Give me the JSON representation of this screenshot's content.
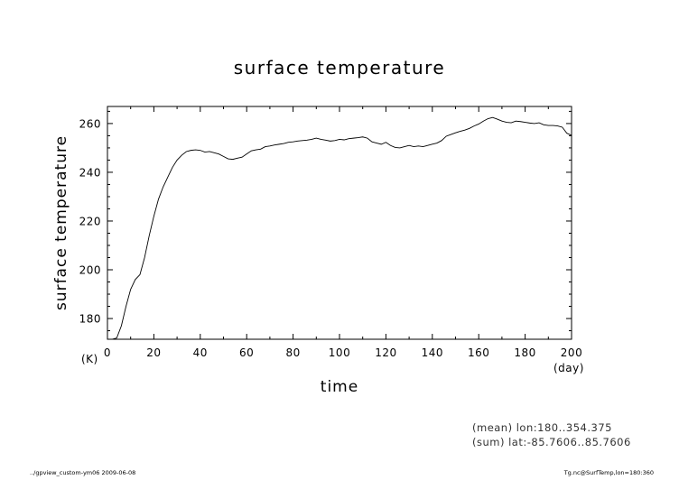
{
  "chart_data": {
    "type": "line",
    "title": "surface temperature",
    "xlabel": "time",
    "ylabel": "surface temperature",
    "x_unit": "(day)",
    "y_unit": "(K)",
    "xlim": [
      0,
      200
    ],
    "ylim": [
      171.5,
      267
    ],
    "xticks": [
      0,
      20,
      40,
      60,
      80,
      100,
      120,
      140,
      160,
      180,
      200
    ],
    "yticks": [
      180,
      200,
      220,
      240,
      260
    ],
    "grid": false,
    "series": [
      {
        "points": [
          [
            0,
            171.5
          ],
          [
            2,
            171.5
          ],
          [
            4,
            172
          ],
          [
            6,
            177
          ],
          [
            8,
            185
          ],
          [
            10,
            192
          ],
          [
            12,
            196
          ],
          [
            14,
            198
          ],
          [
            16,
            205
          ],
          [
            18,
            214
          ],
          [
            20,
            222
          ],
          [
            22,
            229
          ],
          [
            24,
            234
          ],
          [
            26,
            238
          ],
          [
            28,
            242
          ],
          [
            30,
            245
          ],
          [
            32,
            247
          ],
          [
            34,
            248.5
          ],
          [
            36,
            249
          ],
          [
            38,
            249.2
          ],
          [
            40,
            249
          ],
          [
            42,
            248.3
          ],
          [
            44,
            248.5
          ],
          [
            46,
            248
          ],
          [
            48,
            247.5
          ],
          [
            50,
            246.5
          ],
          [
            52,
            245.5
          ],
          [
            54,
            245.3
          ],
          [
            56,
            245.8
          ],
          [
            58,
            246.2
          ],
          [
            60,
            247.5
          ],
          [
            62,
            248.8
          ],
          [
            64,
            249.2
          ],
          [
            66,
            249.5
          ],
          [
            68,
            250.5
          ],
          [
            70,
            250.8
          ],
          [
            72,
            251.2
          ],
          [
            74,
            251.5
          ],
          [
            76,
            251.8
          ],
          [
            78,
            252.3
          ],
          [
            80,
            252.5
          ],
          [
            82,
            252.8
          ],
          [
            84,
            253
          ],
          [
            86,
            253.2
          ],
          [
            88,
            253.5
          ],
          [
            90,
            254
          ],
          [
            92,
            253.5
          ],
          [
            94,
            253.2
          ],
          [
            96,
            252.8
          ],
          [
            98,
            253
          ],
          [
            100,
            253.5
          ],
          [
            102,
            253.3
          ],
          [
            104,
            253.8
          ],
          [
            106,
            254
          ],
          [
            108,
            254.2
          ],
          [
            110,
            254.5
          ],
          [
            112,
            254
          ],
          [
            114,
            252.5
          ],
          [
            116,
            252
          ],
          [
            118,
            251.5
          ],
          [
            120,
            252.3
          ],
          [
            122,
            251
          ],
          [
            124,
            250.2
          ],
          [
            126,
            250
          ],
          [
            128,
            250.5
          ],
          [
            130,
            251
          ],
          [
            132,
            250.5
          ],
          [
            134,
            250.8
          ],
          [
            136,
            250.5
          ],
          [
            138,
            251
          ],
          [
            140,
            251.5
          ],
          [
            142,
            252
          ],
          [
            144,
            253
          ],
          [
            146,
            254.8
          ],
          [
            148,
            255.5
          ],
          [
            150,
            256.2
          ],
          [
            152,
            256.8
          ],
          [
            154,
            257.3
          ],
          [
            156,
            258
          ],
          [
            158,
            259
          ],
          [
            160,
            259.8
          ],
          [
            162,
            261
          ],
          [
            164,
            262
          ],
          [
            166,
            262.5
          ],
          [
            168,
            261.8
          ],
          [
            170,
            261
          ],
          [
            172,
            260.5
          ],
          [
            174,
            260.3
          ],
          [
            176,
            261
          ],
          [
            178,
            260.8
          ],
          [
            180,
            260.5
          ],
          [
            182,
            260.2
          ],
          [
            184,
            260
          ],
          [
            186,
            260.3
          ],
          [
            188,
            259.5
          ],
          [
            190,
            259.2
          ],
          [
            192,
            259.2
          ],
          [
            194,
            259
          ],
          [
            196,
            258.5
          ],
          [
            198,
            256
          ],
          [
            200,
            255.2
          ]
        ]
      }
    ]
  },
  "notes": [
    "(mean) lon:180..354.375",
    "(sum) lat:-85.7606..85.7606"
  ],
  "footer": {
    "left": "../gpview_custom-ym06  2009-06-08",
    "right": "Tg.nc@SurfTemp,lon=180:360"
  }
}
